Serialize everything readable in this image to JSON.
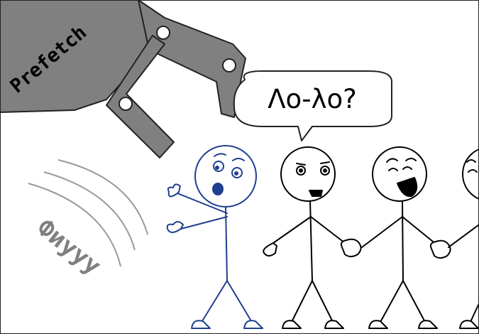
{
  "panel": {
    "background_color": "#ffffff",
    "border_color": "#222222"
  },
  "claw": {
    "label": "Prefetch",
    "fill_color": "#808080",
    "outline_color": "#222222",
    "label_color": "#000000"
  },
  "speech_bubble": {
    "text": "Λο-λο?"
  },
  "sound_effect": {
    "text": "Фиууу",
    "color": "#808080"
  },
  "colors": {
    "highlighted_figure": "#1f3f8f",
    "ink": "#000000",
    "motion_lines": "#999999"
  },
  "figures": [
    {
      "name": "startled-blue-figure",
      "expression": "surprised"
    },
    {
      "name": "speaking-figure",
      "expression": "smiling"
    },
    {
      "name": "shouting-figure",
      "expression": "open-mouth"
    },
    {
      "name": "partial-figure",
      "expression": "cut-off"
    }
  ]
}
